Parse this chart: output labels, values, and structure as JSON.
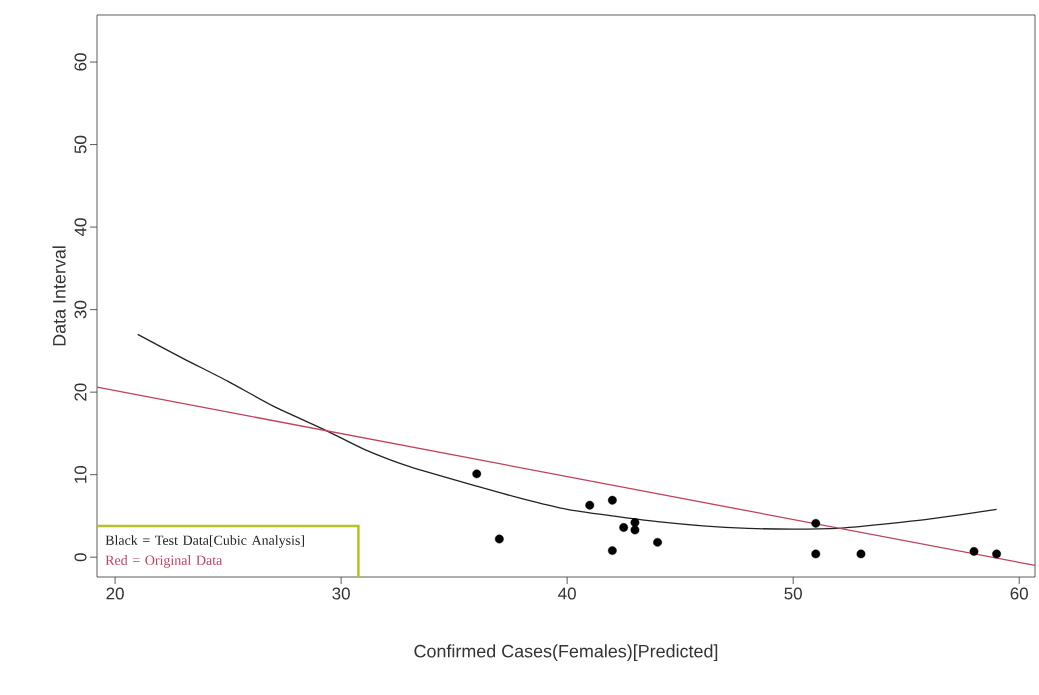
{
  "chart_data": {
    "type": "scatter",
    "xlabel": "Confirmed Cases(Females)[Predicted]",
    "ylabel": "Data Interval",
    "xlim": [
      19.2,
      60.7
    ],
    "ylim": [
      -2.4,
      65.7
    ],
    "xticks": [
      20,
      30,
      40,
      50,
      60
    ],
    "yticks": [
      0,
      10,
      20,
      30,
      40,
      50,
      60
    ],
    "grid": false,
    "legend": "bottom left",
    "series": [
      {
        "marker": "circle",
        "color": "#000000",
        "x": [
          36,
          37,
          41,
          42,
          42,
          42.5,
          43,
          43,
          44,
          51,
          51,
          53,
          58,
          59
        ],
        "values": [
          10.1,
          2.2,
          6.3,
          6.9,
          0.8,
          3.6,
          4.2,
          3.3,
          1.8,
          4.1,
          0.4,
          0.4,
          0.7,
          0.4
        ]
      },
      {
        "type": "line",
        "marker": "none",
        "name": "Black = Test Data[Cubic Analysis]",
        "color": "#222222",
        "x": [
          21,
          23,
          25,
          27,
          29.3,
          31,
          33,
          36,
          38,
          40,
          42,
          44,
          46,
          48,
          50,
          52,
          54,
          56,
          59
        ],
        "values": [
          27,
          24.1,
          21.3,
          18.3,
          15.4,
          13.1,
          11,
          8.6,
          7.1,
          5.8,
          5.0,
          4.3,
          3.8,
          3.5,
          3.4,
          3.5,
          4.0,
          4.6,
          5.8
        ]
      },
      {
        "type": "line",
        "marker": "none",
        "name": "Red = Original  Data",
        "color": "#c0405a",
        "x": [
          19.2,
          60.7
        ],
        "values": [
          20.6,
          -1.0
        ]
      }
    ]
  }
}
